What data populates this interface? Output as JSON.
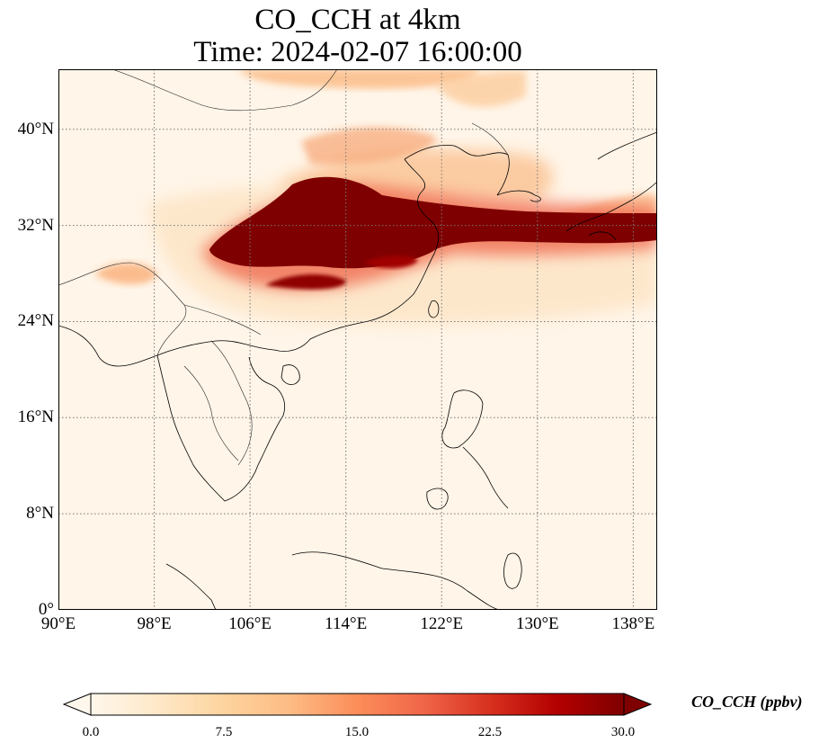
{
  "title": {
    "line1": "CO_CCH at 4km",
    "line2": "Time: 2024-02-07 16:00:00"
  },
  "map": {
    "lon_range": [
      90,
      140
    ],
    "lat_range": [
      0,
      45
    ],
    "gridlines": true,
    "lat_ticks": [
      {
        "value": 40,
        "label": "40°N"
      },
      {
        "value": 32,
        "label": "32°N"
      },
      {
        "value": 24,
        "label": "24°N"
      },
      {
        "value": 16,
        "label": "16°N"
      },
      {
        "value": 8,
        "label": "8°N"
      },
      {
        "value": 0,
        "label": "0°"
      }
    ],
    "lon_ticks": [
      {
        "value": 90,
        "label": "90°E"
      },
      {
        "value": 98,
        "label": "98°E"
      },
      {
        "value": 106,
        "label": "106°E"
      },
      {
        "value": 114,
        "label": "114°E"
      },
      {
        "value": 122,
        "label": "122°E"
      },
      {
        "value": 130,
        "label": "130°E"
      },
      {
        "value": 138,
        "label": "138°E"
      }
    ]
  },
  "colorbar": {
    "label": "CO_CCH (ppbv)",
    "ticks": [
      "0.0",
      "7.5",
      "15.0",
      "22.5",
      "30.0"
    ],
    "min": 0,
    "max": 30,
    "extend": "both",
    "colormap": "OrRd",
    "colors": [
      "#fff7ec",
      "#fee8c8",
      "#fdd49e",
      "#fdbb84",
      "#fc8d59",
      "#ef6548",
      "#d7301f",
      "#b30000",
      "#7f0000"
    ]
  },
  "chart_data": {
    "type": "heatmap",
    "title": "CO_CCH at 4km",
    "subtitle": "Time: 2024-02-07 16:00:00",
    "variable": "CO_CCH",
    "units": "ppbv",
    "vmin": 0,
    "vmax": 30,
    "features": [
      {
        "region": "central/eastern China plume",
        "lon": [
          102,
          132
        ],
        "lat": [
          27,
          35
        ],
        "value": 30
      },
      {
        "region": "eastward plume over sea toward Japan",
        "lon": [
          122,
          140
        ],
        "lat": [
          30.5,
          33.5
        ],
        "value": 28
      },
      {
        "region": "northern China / Korea",
        "lon": [
          108,
          130
        ],
        "lat": [
          35,
          41
        ],
        "value": 12
      },
      {
        "region": "north edge",
        "lon": [
          106,
          124
        ],
        "lat": [
          43,
          45
        ],
        "value": 10
      },
      {
        "region": "northeast Burma / India border",
        "lon": [
          93,
          98
        ],
        "lat": [
          26,
          28
        ],
        "value": 10
      },
      {
        "region": "background",
        "lon": [
          90,
          140
        ],
        "lat": [
          0,
          25
        ],
        "value": 1
      }
    ]
  }
}
